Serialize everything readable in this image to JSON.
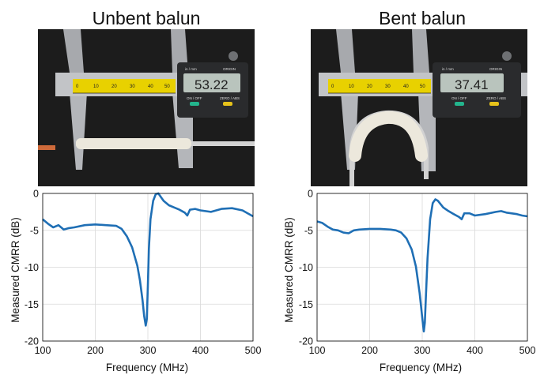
{
  "panels": [
    {
      "title": "Unbent balun",
      "caliper_reading": "53.22",
      "caliper_labels": {
        "units": "in / mm",
        "origin": "ORIGIN",
        "onoff": "ON / OFF",
        "zero": "ZERO / ABS"
      },
      "scale_numbers": [
        "0",
        "10",
        "20",
        "30",
        "40",
        "50"
      ]
    },
    {
      "title": "Bent balun",
      "caliper_reading": "37.41",
      "caliper_labels": {
        "units": "in / mm",
        "origin": "ORIGIN",
        "onoff": "ON / OFF",
        "zero": "ZERO / ABS"
      },
      "scale_numbers": [
        "0",
        "10",
        "20",
        "30",
        "40",
        "50"
      ]
    }
  ],
  "colors": {
    "line": "#1f6fb5",
    "grid": "#d9d9d9",
    "caliper_yellow": "#e8d100",
    "lcd": "#b9c4bd"
  },
  "chart_data": [
    {
      "type": "line",
      "title": "",
      "xlabel": "Frequency (MHz)",
      "ylabel": "Measured CMRR (dB)",
      "xlim": [
        100,
        500
      ],
      "ylim": [
        -20,
        0
      ],
      "xticks": [
        100,
        200,
        300,
        400,
        500
      ],
      "yticks": [
        0,
        -5,
        -10,
        -15,
        -20
      ],
      "grid": true,
      "series": [
        {
          "x": [
            100,
            110,
            120,
            130,
            140,
            150,
            160,
            180,
            200,
            220,
            240,
            250,
            260,
            270,
            280,
            285,
            290,
            293,
            296,
            298,
            300,
            302,
            305,
            310,
            315,
            320,
            325,
            330,
            340,
            350,
            360,
            370,
            375,
            380,
            390,
            400,
            420,
            440,
            460,
            480,
            490,
            500
          ],
          "y": [
            -3.5,
            -4.1,
            -4.6,
            -4.3,
            -4.9,
            -4.7,
            -4.6,
            -4.3,
            -4.2,
            -4.3,
            -4.4,
            -4.8,
            -5.8,
            -7.3,
            -9.8,
            -11.8,
            -14.5,
            -16.6,
            -17.9,
            -17.0,
            -12.5,
            -7.5,
            -3.5,
            -1.0,
            -0.1,
            0.0,
            -0.5,
            -1.0,
            -1.6,
            -1.9,
            -2.2,
            -2.6,
            -3.0,
            -2.2,
            -2.1,
            -2.3,
            -2.5,
            -2.1,
            -2.0,
            -2.3,
            -2.7,
            -3.1
          ]
        }
      ]
    },
    {
      "type": "line",
      "title": "",
      "xlabel": "Frequency (MHz)",
      "ylabel": "Measured CMRR (dB)",
      "xlim": [
        100,
        500
      ],
      "ylim": [
        -20,
        0
      ],
      "xticks": [
        100,
        200,
        300,
        400,
        500
      ],
      "yticks": [
        0,
        -5,
        -10,
        -15,
        -20
      ],
      "grid": true,
      "series": [
        {
          "x": [
            100,
            110,
            120,
            130,
            140,
            150,
            160,
            170,
            180,
            200,
            220,
            240,
            250,
            260,
            270,
            280,
            288,
            295,
            300,
            303,
            305,
            307,
            310,
            315,
            320,
            325,
            330,
            340,
            350,
            360,
            370,
            375,
            380,
            390,
            400,
            420,
            440,
            450,
            460,
            480,
            490,
            500
          ],
          "y": [
            -3.8,
            -4.0,
            -4.5,
            -4.9,
            -5.0,
            -5.3,
            -5.4,
            -5.0,
            -4.9,
            -4.8,
            -4.8,
            -4.9,
            -5.0,
            -5.3,
            -6.1,
            -7.6,
            -9.9,
            -13.5,
            -16.8,
            -18.7,
            -17.5,
            -13.8,
            -8.8,
            -3.5,
            -1.3,
            -0.8,
            -1.0,
            -1.9,
            -2.4,
            -2.8,
            -3.2,
            -3.5,
            -2.7,
            -2.7,
            -3.0,
            -2.8,
            -2.5,
            -2.4,
            -2.6,
            -2.8,
            -3.0,
            -3.1
          ]
        }
      ]
    }
  ]
}
